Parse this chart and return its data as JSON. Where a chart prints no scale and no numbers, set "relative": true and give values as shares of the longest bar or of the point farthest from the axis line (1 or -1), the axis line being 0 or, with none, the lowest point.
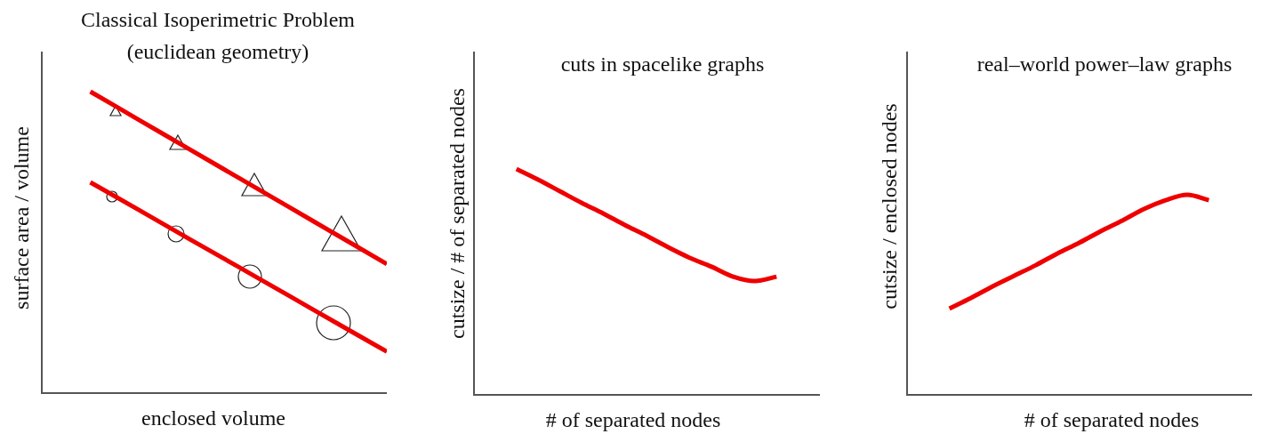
{
  "chart_data": [
    {
      "type": "line",
      "title": "Classical Isoperimetric Problem",
      "subtitle": "(euclidean geometry)",
      "xlabel": "enclosed volume",
      "ylabel": "surface area / volume",
      "relative": true,
      "categories": [
        null,
        null,
        null,
        null,
        null,
        null,
        null,
        null
      ],
      "series": [
        {
          "color": "#ee0000",
          "values": [
            null,
            1,
            0.905,
            0.81,
            0.715,
            0.62,
            0.525,
            0.43
          ]
        },
        {
          "color": "#ee0000",
          "values": [
            null,
            0.7,
            0.607,
            0.513,
            0.42,
            0.327,
            0.233,
            0.14
          ]
        }
      ],
      "marker": "none",
      "legend": false
    },
    {
      "type": "line",
      "title": "cuts in spacelike graphs",
      "xlabel": "# of separated nodes",
      "ylabel": "cutsize / # of separated nodes",
      "relative": true,
      "categories": [
        null,
        null,
        null,
        null,
        null,
        null,
        null,
        null,
        null,
        null,
        null,
        null,
        null,
        null,
        null,
        null,
        null
      ],
      "series": [
        {
          "color": "#ee0000",
          "values": [
            null,
            null,
            1,
            0.953,
            0.902,
            0.851,
            0.804,
            0.753,
            0.706,
            0.655,
            0.608,
            0.569,
            0.525,
            0.506,
            0.525,
            null,
            null
          ]
        }
      ],
      "marker": "none",
      "legend": false
    },
    {
      "type": "line",
      "title": "real–world power–law graphs",
      "xlabel": "# of separated nodes",
      "ylabel": "cutsize / enclosed nodes",
      "relative": true,
      "categories": [
        null,
        null,
        null,
        null,
        null,
        null,
        null,
        null,
        null,
        null,
        null,
        null,
        null,
        null,
        null,
        null,
        null
      ],
      "series": [
        {
          "color": "#ee0000",
          "values": [
            null,
            null,
            0.434,
            0.487,
            0.544,
            0.597,
            0.65,
            0.708,
            0.761,
            0.819,
            0.872,
            0.929,
            0.973,
            1,
            0.973,
            null,
            null
          ]
        }
      ],
      "marker": "none",
      "legend": false
    }
  ]
}
